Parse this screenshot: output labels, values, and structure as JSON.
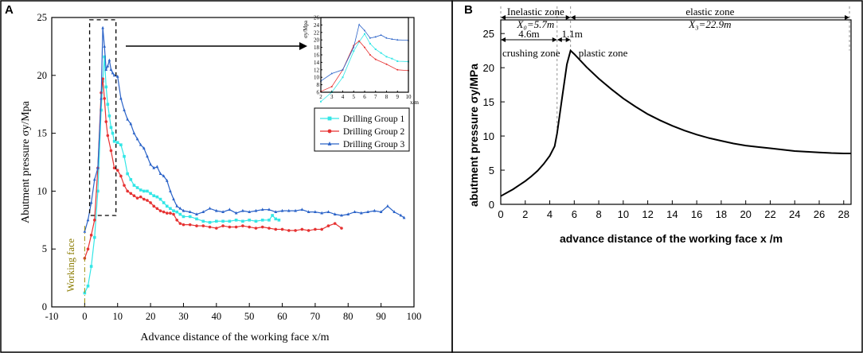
{
  "chart_data": [
    {
      "panel": "A",
      "type": "line",
      "xlabel": "Advance distance of the working face x/m",
      "ylabel": "Abutment pressure σy/Mpa",
      "xlim": [
        -10,
        100
      ],
      "ylim": [
        0,
        25
      ],
      "x_ticks": [
        -10,
        0,
        10,
        20,
        30,
        40,
        50,
        60,
        70,
        80,
        90,
        100
      ],
      "y_ticks": [
        0,
        5,
        10,
        15,
        20,
        25
      ],
      "annotation": "Working face",
      "series": [
        {
          "name": "Drilling Group 1",
          "color": "#33e6e6",
          "marker": "square",
          "points": [
            [
              0,
              1.2
            ],
            [
              1,
              1.8
            ],
            [
              2,
              3.5
            ],
            [
              3,
              6
            ],
            [
              4,
              10
            ],
            [
              5,
              17
            ],
            [
              5.5,
              19.5
            ],
            [
              6,
              21.6
            ],
            [
              6.5,
              19
            ],
            [
              7,
              17.5
            ],
            [
              7.5,
              16.5
            ],
            [
              8,
              15.5
            ],
            [
              8.5,
              15
            ],
            [
              9,
              14.3
            ],
            [
              10,
              14.2
            ],
            [
              11,
              14
            ],
            [
              12,
              13
            ],
            [
              13,
              11.5
            ],
            [
              14,
              11
            ],
            [
              15,
              10.5
            ],
            [
              16,
              10.3
            ],
            [
              17,
              10.1
            ],
            [
              18,
              10
            ],
            [
              19,
              10
            ],
            [
              20,
              9.8
            ],
            [
              21,
              9.6
            ],
            [
              22,
              9.5
            ],
            [
              23,
              9.3
            ],
            [
              24,
              9
            ],
            [
              25,
              8.7
            ],
            [
              26,
              8.5
            ],
            [
              27,
              8.3
            ],
            [
              28,
              8.2
            ],
            [
              29,
              8
            ],
            [
              30,
              7.8
            ],
            [
              32,
              7.8
            ],
            [
              34,
              7.6
            ],
            [
              36,
              7.4
            ],
            [
              38,
              7.3
            ],
            [
              40,
              7.4
            ],
            [
              42,
              7.4
            ],
            [
              44,
              7.4
            ],
            [
              46,
              7.5
            ],
            [
              48,
              7.4
            ],
            [
              50,
              7.5
            ],
            [
              52,
              7.4
            ],
            [
              54,
              7.5
            ],
            [
              56,
              7.5
            ],
            [
              57,
              7.9
            ],
            [
              58,
              7.6
            ],
            [
              59,
              7.5
            ]
          ]
        },
        {
          "name": "Drilling Group 2",
          "color": "#e63232",
          "marker": "circle",
          "points": [
            [
              0,
              4.2
            ],
            [
              1,
              5
            ],
            [
              2,
              6.2
            ],
            [
              3,
              7.5
            ],
            [
              4,
              12
            ],
            [
              5,
              18.5
            ],
            [
              5.5,
              19.7
            ],
            [
              6,
              18
            ],
            [
              6.5,
              16
            ],
            [
              7,
              14.8
            ],
            [
              8,
              13.5
            ],
            [
              9,
              12
            ],
            [
              10,
              11.8
            ],
            [
              11,
              11.3
            ],
            [
              12,
              10.5
            ],
            [
              13,
              10
            ],
            [
              14,
              9.8
            ],
            [
              15,
              9.6
            ],
            [
              16,
              9.4
            ],
            [
              17,
              9.5
            ],
            [
              18,
              9.3
            ],
            [
              19,
              9.2
            ],
            [
              20,
              9
            ],
            [
              21,
              8.7
            ],
            [
              22,
              8.5
            ],
            [
              23,
              8.3
            ],
            [
              24,
              8.2
            ],
            [
              25,
              8.1
            ],
            [
              26,
              8.1
            ],
            [
              27,
              8
            ],
            [
              28,
              7.5
            ],
            [
              29,
              7.2
            ],
            [
              30,
              7.1
            ],
            [
              32,
              7.1
            ],
            [
              34,
              7
            ],
            [
              36,
              7
            ],
            [
              38,
              6.9
            ],
            [
              40,
              6.8
            ],
            [
              42,
              7
            ],
            [
              44,
              6.9
            ],
            [
              46,
              6.9
            ],
            [
              48,
              7
            ],
            [
              50,
              6.9
            ],
            [
              52,
              6.8
            ],
            [
              54,
              6.9
            ],
            [
              56,
              6.8
            ],
            [
              58,
              6.7
            ],
            [
              60,
              6.7
            ],
            [
              62,
              6.6
            ],
            [
              64,
              6.6
            ],
            [
              66,
              6.7
            ],
            [
              68,
              6.6
            ],
            [
              70,
              6.7
            ],
            [
              72,
              6.7
            ],
            [
              74,
              7
            ],
            [
              76,
              7.2
            ],
            [
              78,
              6.8
            ]
          ]
        },
        {
          "name": "Drilling Group 3",
          "color": "#2b63c8",
          "marker": "triangle",
          "points": [
            [
              0,
              6.5
            ],
            [
              1,
              7.5
            ],
            [
              2,
              9
            ],
            [
              3,
              11
            ],
            [
              4,
              12
            ],
            [
              5,
              18
            ],
            [
              5.5,
              24.1
            ],
            [
              6,
              22.5
            ],
            [
              6.5,
              20.5
            ],
            [
              7,
              20.8
            ],
            [
              7.5,
              21.3
            ],
            [
              8,
              20.5
            ],
            [
              8.5,
              20.2
            ],
            [
              9,
              20
            ],
            [
              10,
              19.9
            ],
            [
              11,
              18
            ],
            [
              12,
              17
            ],
            [
              13,
              16.2
            ],
            [
              14,
              15.8
            ],
            [
              15,
              15
            ],
            [
              16,
              14.5
            ],
            [
              17,
              14
            ],
            [
              18,
              13.7
            ],
            [
              19,
              13
            ],
            [
              20,
              12.3
            ],
            [
              21,
              12
            ],
            [
              22,
              12.1
            ],
            [
              23,
              11.5
            ],
            [
              24,
              11.3
            ],
            [
              25,
              10.9
            ],
            [
              26,
              10
            ],
            [
              27,
              9.3
            ],
            [
              28,
              8.7
            ],
            [
              29,
              8.5
            ],
            [
              30,
              8.3
            ],
            [
              32,
              8.2
            ],
            [
              34,
              8
            ],
            [
              36,
              8.2
            ],
            [
              38,
              8.5
            ],
            [
              40,
              8.3
            ],
            [
              42,
              8.2
            ],
            [
              44,
              8.4
            ],
            [
              46,
              8.1
            ],
            [
              48,
              8.3
            ],
            [
              50,
              8.2
            ],
            [
              52,
              8.3
            ],
            [
              54,
              8.4
            ],
            [
              56,
              8.4
            ],
            [
              58,
              8.2
            ],
            [
              60,
              8.3
            ],
            [
              62,
              8.3
            ],
            [
              64,
              8.3
            ],
            [
              66,
              8.4
            ],
            [
              68,
              8.2
            ],
            [
              70,
              8.2
            ],
            [
              72,
              8.1
            ],
            [
              74,
              8.2
            ],
            [
              76,
              8
            ],
            [
              78,
              7.9
            ],
            [
              80,
              8
            ],
            [
              82,
              8.2
            ],
            [
              84,
              8.1
            ],
            [
              86,
              8.2
            ],
            [
              88,
              8.3
            ],
            [
              90,
              8.2
            ],
            [
              92,
              8.7
            ],
            [
              94,
              8.2
            ],
            [
              96,
              7.9
            ],
            [
              97,
              7.7
            ]
          ]
        }
      ],
      "inset": {
        "ylabel": "σy/Mpa",
        "xlabel": "x/m",
        "xlim": [
          2,
          10
        ],
        "ylim": [
          6,
          26
        ],
        "x_ticks": [
          2,
          3,
          4,
          5,
          6,
          7,
          8,
          9,
          10
        ],
        "y_ticks": [
          6,
          8,
          10,
          12,
          14,
          16,
          18,
          20,
          22,
          24,
          26
        ]
      }
    },
    {
      "panel": "B",
      "type": "line",
      "xlabel": "advance distance of the working face  x /m",
      "ylabel": "abutment pressure  σy/MPa",
      "xlim": [
        0,
        28.6
      ],
      "ylim": [
        0,
        27
      ],
      "x_ticks": [
        0,
        2,
        4,
        6,
        8,
        10,
        12,
        14,
        16,
        18,
        20,
        22,
        24,
        26,
        28
      ],
      "y_ticks": [
        0,
        5,
        10,
        15,
        20,
        25
      ],
      "points": [
        [
          0,
          1.2
        ],
        [
          0.5,
          1.7
        ],
        [
          1,
          2.2
        ],
        [
          1.5,
          2.8
        ],
        [
          2,
          3.4
        ],
        [
          2.5,
          4.1
        ],
        [
          3,
          4.9
        ],
        [
          3.5,
          5.9
        ],
        [
          4,
          7.1
        ],
        [
          4.4,
          8.5
        ],
        [
          4.6,
          10.4
        ],
        [
          5,
          15.5
        ],
        [
          5.4,
          20.5
        ],
        [
          5.7,
          22.5
        ],
        [
          6,
          22
        ],
        [
          7,
          20.1
        ],
        [
          8,
          18.4
        ],
        [
          9,
          16.9
        ],
        [
          10,
          15.5
        ],
        [
          11,
          14.3
        ],
        [
          12,
          13.2
        ],
        [
          13,
          12.3
        ],
        [
          14,
          11.5
        ],
        [
          15,
          10.8
        ],
        [
          16,
          10.2
        ],
        [
          17,
          9.7
        ],
        [
          18,
          9.3
        ],
        [
          19,
          8.9
        ],
        [
          20,
          8.6
        ],
        [
          21,
          8.4
        ],
        [
          22,
          8.2
        ],
        [
          23,
          8
        ],
        [
          24,
          7.8
        ],
        [
          25,
          7.7
        ],
        [
          26,
          7.6
        ],
        [
          27,
          7.5
        ],
        [
          28,
          7.45
        ],
        [
          28.6,
          7.45
        ]
      ],
      "zones": {
        "inelastic": "Inelastic zone",
        "x0": "X₀=5.7m",
        "elastic": "elastic zone",
        "x3": "X₃=22.9m",
        "crushing_width": "4.6m",
        "plastic_width": "1.1m",
        "crushing": "crushing zone",
        "plastic": "plastic zone"
      }
    }
  ]
}
